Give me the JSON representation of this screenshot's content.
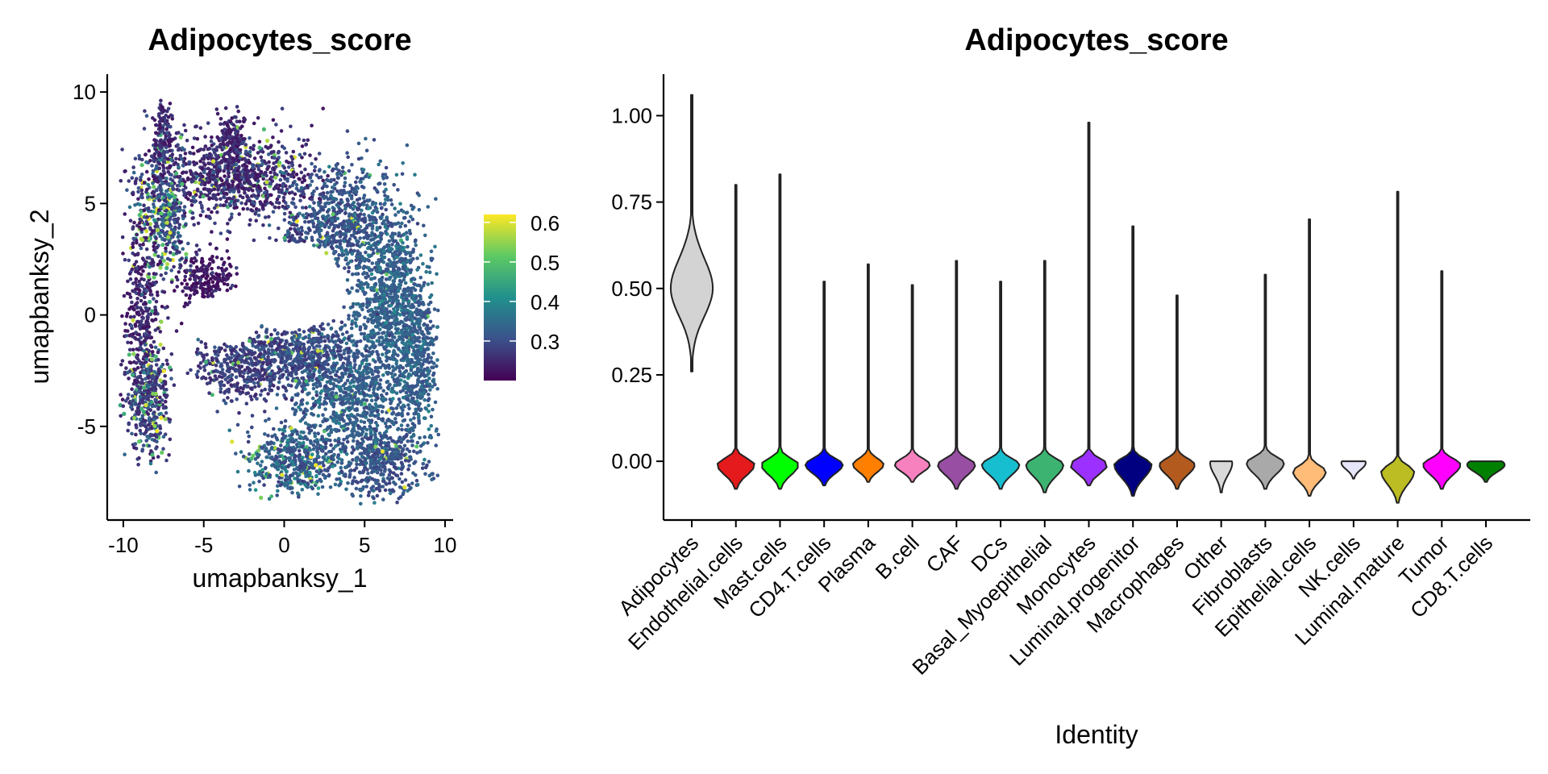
{
  "chart_data": [
    {
      "type": "scatter",
      "title": "Adipocytes_score",
      "xlabel": "umapbanksy_1",
      "ylabel": "umapbanksy_2",
      "xlim": [
        -11,
        10.5
      ],
      "ylim": [
        -9.2,
        10.8
      ],
      "xticks": [
        -10,
        -5,
        0,
        5,
        10
      ],
      "yticks": [
        -5,
        0,
        5,
        10
      ],
      "xtick_labels": [
        "-10",
        "-5",
        "0",
        "5",
        "10"
      ],
      "ytick_labels": [
        "-5",
        "0",
        "5",
        "10"
      ],
      "color_scale": {
        "name": "viridis",
        "min": 0.2,
        "max": 0.62,
        "ticks": [
          0.3,
          0.4,
          0.5,
          0.6
        ],
        "tick_labels": [
          "0.3",
          "0.4",
          "0.5",
          "0.6"
        ],
        "colors": [
          "#440154",
          "#3b528b",
          "#21908d",
          "#5dc963",
          "#fde725"
        ]
      }
    },
    {
      "type": "violin",
      "title": "Adipocytes_score",
      "xlabel": "Identity",
      "ylabel": "",
      "ylim": [
        -0.17,
        1.12
      ],
      "yticks": [
        0,
        0.25,
        0.5,
        0.75,
        1
      ],
      "ytick_labels": [
        "0.00",
        "0.25",
        "0.50",
        "0.75",
        "1.00"
      ],
      "categories": [
        "Adipocytes",
        "Endothelial.cells",
        "Mast.cells",
        "CD4.T.cells",
        "Plasma",
        "B.cell",
        "CAF",
        "DCs",
        "Basal_Myoepithelial",
        "Monocytes",
        "Luminal.progenitor",
        "Macrophages",
        "Other",
        "Fibroblasts",
        "Epithelial.cells",
        "NK.cells",
        "Luminal.mature",
        "Tumor",
        "CD8.T.cells"
      ],
      "colors": [
        "#d3d3d3",
        "#e41a1c",
        "#00ff00",
        "#0000ff",
        "#ff7f00",
        "#f781bf",
        "#984ea3",
        "#17becf",
        "#3cb371",
        "#9b30ff",
        "#000080",
        "#b35a1f",
        "#d9d9d9",
        "#a9a9a9",
        "#ffbb78",
        "#e6e6fa",
        "#bcbd22",
        "#ff00ff",
        "#008000"
      ],
      "max_values": [
        1.06,
        0.8,
        0.83,
        0.52,
        0.57,
        0.51,
        0.58,
        0.52,
        0.58,
        0.98,
        0.68,
        0.48,
        0.0,
        0.54,
        0.7,
        0.0,
        0.78,
        0.55,
        0.0
      ],
      "min_values": [
        0.26,
        -0.08,
        -0.08,
        -0.07,
        -0.06,
        -0.06,
        -0.08,
        -0.08,
        -0.09,
        -0.07,
        -0.1,
        -0.08,
        -0.09,
        -0.08,
        -0.1,
        -0.05,
        -0.12,
        -0.08,
        -0.06
      ],
      "mode_values": [
        0.5,
        -0.01,
        -0.01,
        -0.01,
        -0.01,
        -0.01,
        -0.01,
        -0.01,
        -0.01,
        -0.01,
        -0.01,
        -0.01,
        -0.005,
        -0.005,
        -0.03,
        -0.005,
        -0.03,
        -0.01,
        -0.01
      ],
      "peak_width": [
        0.95,
        0.85,
        0.85,
        0.85,
        0.7,
        0.8,
        0.85,
        0.85,
        0.85,
        0.85,
        0.85,
        0.8,
        0.5,
        0.85,
        0.75,
        0.55,
        0.75,
        0.85,
        0.85
      ]
    }
  ]
}
